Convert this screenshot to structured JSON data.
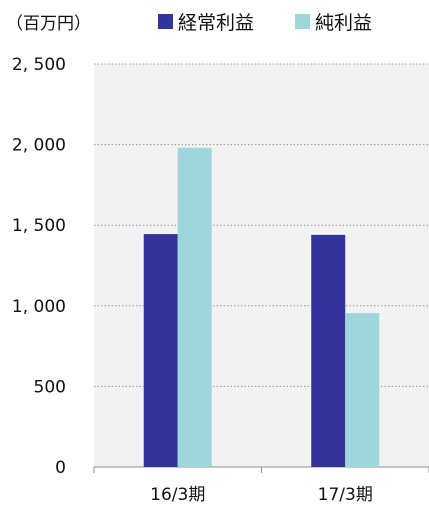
{
  "chart_data": {
    "type": "bar",
    "unit_label": "（百万円）",
    "categories": [
      "16/3期",
      "17/3期"
    ],
    "series": [
      {
        "name": "経常利益",
        "color": "#333399",
        "values": [
          1445,
          1440
        ]
      },
      {
        "name": "純利益",
        "color": "#9fd6db",
        "values": [
          1980,
          955
        ]
      }
    ],
    "ylim": [
      0,
      2500
    ],
    "yticks": [
      0,
      500,
      1000,
      1500,
      2000,
      2500
    ],
    "ytick_labels": [
      "0",
      "500",
      "1, 000",
      "1, 500",
      "2, 000",
      "2, 500"
    ],
    "grid": true,
    "legend": "top",
    "plot_background": "#f2f2f2"
  }
}
